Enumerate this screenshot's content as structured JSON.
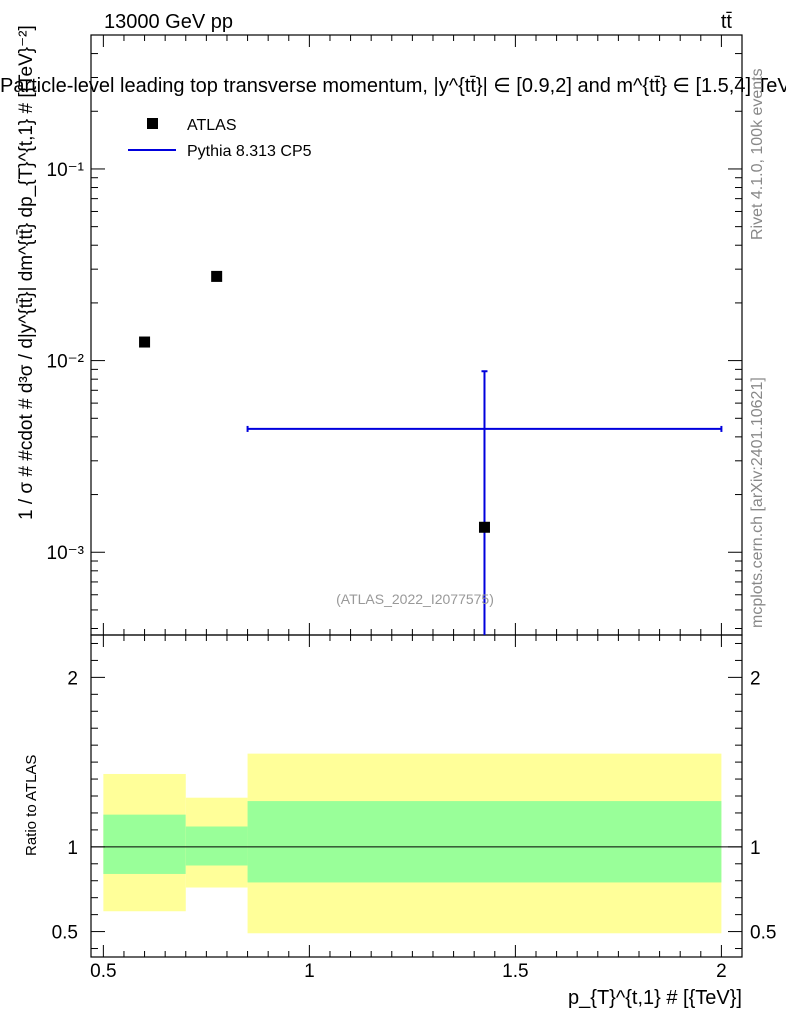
{
  "header": {
    "energy_label": "13000 GeV pp",
    "process_label": "tt̄",
    "title": "Particle-level leading top transverse momentum, |y^{tt̄}| ∈ [0.9,2] and m^{tt̄} ∈ [1.5,4] TeV",
    "side_label_top": "Rivet 4.1.0,  100k events",
    "side_label_bottom": "mcplots.cern.ch [arXiv:2401.10621]",
    "watermark": "(ATLAS_2022_I2077575)"
  },
  "chart_data": {
    "type": "scatter",
    "main": {
      "ylabel": "1 / σ # #cdot # d³σ / d|y^{tt̄}| dm^{tt̄} dp_{T}^{t,1} # [{TeV}⁻²]",
      "yscale": "log",
      "ylim": [
        0.00037,
        0.5
      ],
      "ytick_labels": [
        "10⁻¹",
        "10⁻²",
        "10⁻³"
      ],
      "ytick_values": [
        0.1,
        0.01,
        0.001
      ],
      "legend": {
        "position": "top-left",
        "entries": [
          {
            "label": "ATLAS",
            "marker": "square",
            "color": "#000000"
          },
          {
            "label": "Pythia 8.313 CP5",
            "marker": "line",
            "color": "#0000dd"
          }
        ]
      },
      "series": [
        {
          "name": "ATLAS",
          "color": "#000000",
          "points": [
            {
              "x": 0.6,
              "y": 0.0125
            },
            {
              "x": 0.775,
              "y": 0.0275
            },
            {
              "x": 1.425,
              "y": 0.00135
            }
          ]
        },
        {
          "name": "Pythia 8.313 CP5",
          "color": "#0000dd",
          "points": [
            {
              "x": 1.425,
              "y": 0.0044,
              "xlow": 0.85,
              "xhigh": 2.0,
              "ylow": 0.00037,
              "yhigh": 0.0088
            }
          ]
        }
      ]
    },
    "ratio": {
      "ylabel": "Ratio to ATLAS",
      "ylim": [
        0.35,
        2.25
      ],
      "ytick_labels": [
        "0.5",
        "1",
        "2"
      ],
      "ytick_values": [
        0.5,
        1,
        2
      ],
      "reference_line": 1,
      "band_colors": {
        "outer": "#ffff99",
        "inner": "#99ff99"
      },
      "bands": [
        {
          "xlow": 0.5,
          "xhigh": 0.7,
          "outer_low": 0.62,
          "outer_high": 1.43,
          "inner_low": 0.84,
          "inner_high": 1.19
        },
        {
          "xlow": 0.7,
          "xhigh": 0.85,
          "outer_low": 0.76,
          "outer_high": 1.29,
          "inner_low": 0.89,
          "inner_high": 1.12
        },
        {
          "xlow": 0.85,
          "xhigh": 2.0,
          "outer_low": 0.49,
          "outer_high": 1.55,
          "inner_low": 0.79,
          "inner_high": 1.27
        }
      ]
    },
    "xaxis": {
      "xlabel": "p_{T}^{t,1} # [{TeV}]",
      "xlim": [
        0.47,
        2.05
      ],
      "tick_labels": [
        "0.5",
        "1",
        "1.5",
        "2"
      ],
      "tick_values": [
        0.5,
        1,
        1.5,
        2
      ]
    }
  }
}
